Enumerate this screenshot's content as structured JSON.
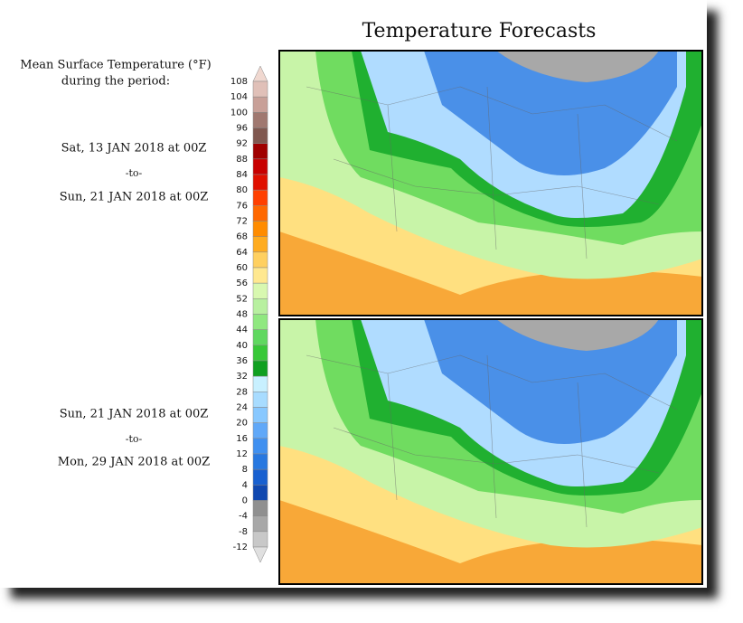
{
  "title": "Temperature Forecasts",
  "legend": {
    "title": [
      "Mean Surface Temperature (°F)",
      "during the period:"
    ],
    "ticks": [
      108,
      104,
      100,
      96,
      92,
      88,
      84,
      80,
      76,
      72,
      68,
      64,
      60,
      56,
      52,
      48,
      44,
      40,
      36,
      32,
      28,
      24,
      20,
      16,
      12,
      8,
      4,
      0,
      -4,
      -8,
      -12
    ],
    "colors": [
      "#f0d8d0",
      "#e0c0b8",
      "#c8a098",
      "#a07870",
      "#805850",
      "#a00000",
      "#c80000",
      "#e01000",
      "#ff4000",
      "#ff6800",
      "#ff8c00",
      "#ffac20",
      "#ffd060",
      "#ffe890",
      "#d8f8b0",
      "#b8f0a0",
      "#90e880",
      "#60d860",
      "#38c838",
      "#10a020",
      "#c8f0ff",
      "#a8dcff",
      "#88c8ff",
      "#60a8f8",
      "#4090f0",
      "#2878e0",
      "#1860d0",
      "#1048b0",
      "#909090",
      "#a8a8a8",
      "#c8c8c8",
      "#e0e0e0"
    ]
  },
  "periods": [
    {
      "start": "Sat, 13 JAN 2018 at 00Z",
      "separator": "-to-",
      "end": "Sun, 21 JAN 2018 at 00Z"
    },
    {
      "start": "Sun, 21 JAN 2018 at 00Z",
      "separator": "-to-",
      "end": "Mon, 29 JAN 2018 at 00Z"
    }
  ]
}
